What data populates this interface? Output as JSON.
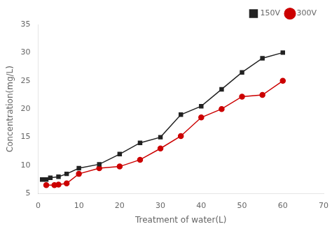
{
  "chart_data": {
    "type": "line",
    "x_label": "Treatment of water(L)",
    "y_label": "Concentration(mg/L)",
    "series": [
      {
        "name": "150V",
        "color": "#222222",
        "marker": "square",
        "line_style": "solid",
        "x": [
          1,
          2,
          3,
          5,
          7,
          10,
          15,
          20,
          25,
          30,
          35,
          40,
          45,
          50,
          55,
          60
        ],
        "values": [
          7.5,
          7.5,
          7.8,
          8.0,
          8.5,
          9.5,
          10.2,
          12.0,
          14.0,
          15.0,
          19.0,
          20.5,
          23.5,
          26.5,
          29.0,
          30.0
        ]
      },
      {
        "name": "300V",
        "color": "#cc0000",
        "marker": "circle",
        "line_style": "solid",
        "x": [
          2,
          4,
          5,
          7,
          10,
          15,
          20,
          25,
          30,
          35,
          40,
          45,
          50,
          55,
          60
        ],
        "values": [
          6.5,
          6.5,
          6.6,
          6.8,
          8.5,
          9.5,
          9.8,
          11.0,
          13.0,
          15.2,
          18.5,
          20.0,
          22.2,
          22.5,
          25.0
        ]
      }
    ],
    "xlim": [
      0,
      70
    ],
    "ylim": [
      5,
      35
    ],
    "xticks": [
      0,
      10,
      20,
      30,
      40,
      50,
      60,
      70
    ],
    "yticks": [
      5,
      10,
      15,
      20,
      25,
      30,
      35
    ],
    "grid": false,
    "legend": "upper right"
  }
}
